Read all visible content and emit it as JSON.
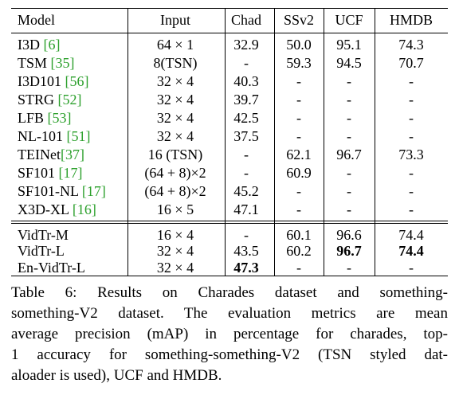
{
  "table": {
    "headers": [
      "Model",
      "Input",
      "Chad",
      "SSv2",
      "UCF",
      "HMDB"
    ],
    "group1": [
      {
        "model": "I3D",
        "cite": "[6]",
        "input": "64 × 1",
        "chad": "32.9",
        "ssv2": "50.0",
        "ucf": "95.1",
        "hmdb": "74.3"
      },
      {
        "model": "TSM",
        "cite": "[35]",
        "input": "8(TSN)",
        "chad": "-",
        "ssv2": "59.3",
        "ucf": "94.5",
        "hmdb": "70.7"
      },
      {
        "model": "I3D101",
        "cite": "[56]",
        "input": "32 × 4",
        "chad": "40.3",
        "ssv2": "-",
        "ucf": "-",
        "hmdb": "-"
      },
      {
        "model": "STRG",
        "cite": "[52]",
        "input": "32 × 4",
        "chad": "39.7",
        "ssv2": "-",
        "ucf": "-",
        "hmdb": "-"
      },
      {
        "model": "LFB",
        "cite": "[53]",
        "input": "32 × 4",
        "chad": "42.5",
        "ssv2": "-",
        "ucf": "-",
        "hmdb": "-"
      },
      {
        "model": "NL-101",
        "cite": "[51]",
        "input": "32 × 4",
        "chad": "37.5",
        "ssv2": "-",
        "ucf": "-",
        "hmdb": "-"
      },
      {
        "model": "TEINet",
        "cite": "[37]",
        "input": "16 (TSN)",
        "chad": "-",
        "ssv2": "62.1",
        "ucf": "96.7",
        "hmdb": "73.3"
      },
      {
        "model": "SF101",
        "cite": "[17]",
        "input": "(64 + 8)×2",
        "chad": "-",
        "ssv2": "60.9",
        "ucf": "-",
        "hmdb": "-"
      },
      {
        "model": "SF101-NL",
        "cite": "[17]",
        "input": "(64 + 8)×2",
        "chad": "45.2",
        "ssv2": "-",
        "ucf": "-",
        "hmdb": "-"
      },
      {
        "model": "X3D-XL",
        "cite": "[16]",
        "input": "16 × 5",
        "chad": "47.1",
        "ssv2": "-",
        "ucf": "-",
        "hmdb": "-"
      }
    ],
    "group2": [
      {
        "model": "VidTr-M",
        "input": "16 × 4",
        "chad": "-",
        "ssv2": "60.1",
        "ucf": "96.6",
        "hmdb": "74.4"
      },
      {
        "model": "VidTr-L",
        "input": "32 × 4",
        "chad": "43.5",
        "ssv2": "60.2",
        "ucf": "96.7",
        "hmdb": "74.4"
      },
      {
        "model": "En-VidTr-L",
        "input": "32 × 4",
        "chad": "47.3",
        "ssv2": "-",
        "ucf": "-",
        "hmdb": "-"
      }
    ]
  },
  "caption": {
    "lines": [
      "Table 6:  Results on Charades dataset and something-",
      "something-V2 dataset.  The evaluation metrics are mean",
      "average precision (mAP) in percentage for charades, top-",
      "1 accuracy for something-something-V2 (TSN styled dat-",
      "aloader is used), UCF and HMDB."
    ]
  }
}
